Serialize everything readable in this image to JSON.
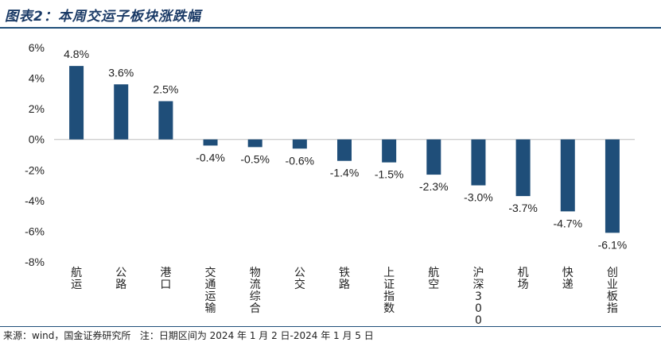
{
  "title": "图表2：本周交运子板块涨跌幅",
  "source_prefix": "来源：",
  "source_name": "wind，国金证券研究所",
  "note": "注：日期区间为 2024 年 1 月 2 日-2024 年 1 月 5 日",
  "colors": {
    "bar": "#1f4e79",
    "axis": "#bfbfbf",
    "title": "#1a3a66"
  },
  "chart_data": {
    "type": "bar",
    "title": "本周交运子板块涨跌幅",
    "xlabel": "",
    "ylabel": "",
    "ylim": [
      -8,
      6
    ],
    "yticks": [
      6,
      4,
      2,
      0,
      -2,
      -4,
      -6,
      -8
    ],
    "ytick_labels": [
      "6%",
      "4%",
      "2%",
      "0%",
      "-2%",
      "-4%",
      "-6%",
      "-8%"
    ],
    "categories": [
      "航运",
      "公路",
      "港口",
      "交通运输",
      "物流综合",
      "公交",
      "铁路",
      "上证指数",
      "航空",
      "沪深300",
      "机场",
      "快递",
      "创业板指"
    ],
    "values": [
      4.8,
      3.6,
      2.5,
      -0.4,
      -0.5,
      -0.6,
      -1.4,
      -1.5,
      -2.3,
      -3.0,
      -3.7,
      -4.7,
      -6.1
    ],
    "data_labels": [
      "4.8%",
      "3.6%",
      "2.5%",
      "-0.4%",
      "-0.5%",
      "-0.6%",
      "-1.4%",
      "-1.5%",
      "-2.3%",
      "-3.0%",
      "-3.7%",
      "-4.7%",
      "-6.1%"
    ],
    "grid": false,
    "legend": "none"
  }
}
